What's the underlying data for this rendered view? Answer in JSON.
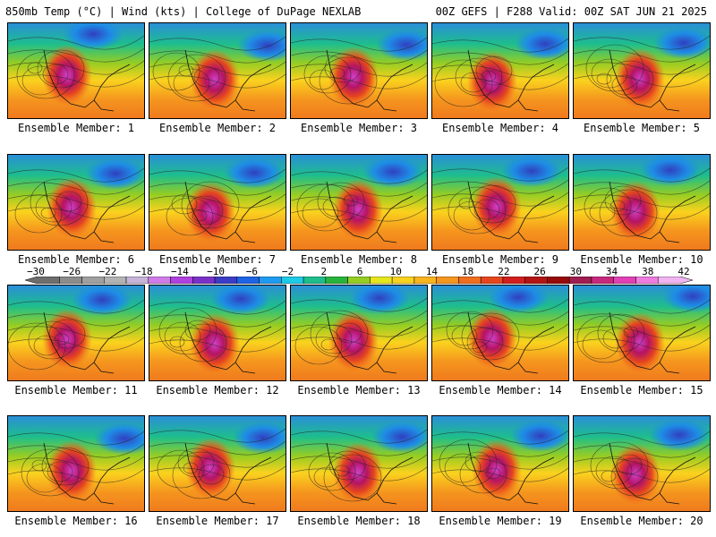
{
  "header": {
    "left": "850mb Temp (°C) | Wind (kts) | College of DuPage NEXLAB",
    "right": "00Z GEFS | F288 Valid: 00Z SAT JUN 21 2025"
  },
  "colorbar": {
    "labels": [
      "−30",
      "−26",
      "−22",
      "−18",
      "−14",
      "−10",
      "−6",
      "−2",
      "2",
      "6",
      "10",
      "14",
      "18",
      "22",
      "26",
      "30",
      "34",
      "38",
      "42"
    ],
    "colors": [
      "#6e6e6e",
      "#8c8c8c",
      "#a0a0a0",
      "#b4b4b4",
      "#c8b4d8",
      "#d07ce8",
      "#b040e0",
      "#7a30c8",
      "#3c3cc8",
      "#1e64e6",
      "#1e9bf0",
      "#1ecbe6",
      "#1ebe8c",
      "#28b43c",
      "#96cd23",
      "#e6e61e",
      "#fad21e",
      "#fab41e",
      "#f5961e",
      "#f06e1e",
      "#e6461e",
      "#d21e1e",
      "#b41414",
      "#960a0a",
      "#a01e50",
      "#c8287e",
      "#e040b4",
      "#f07ce0",
      "#f0b4f0"
    ]
  },
  "members": [
    {
      "label": "Ensemble Member: 1"
    },
    {
      "label": "Ensemble Member: 2"
    },
    {
      "label": "Ensemble Member: 3"
    },
    {
      "label": "Ensemble Member: 4"
    },
    {
      "label": "Ensemble Member: 5"
    },
    {
      "label": "Ensemble Member: 6"
    },
    {
      "label": "Ensemble Member: 7"
    },
    {
      "label": "Ensemble Member: 8"
    },
    {
      "label": "Ensemble Member: 9"
    },
    {
      "label": "Ensemble Member: 10"
    },
    {
      "label": "Ensemble Member: 11"
    },
    {
      "label": "Ensemble Member: 12"
    },
    {
      "label": "Ensemble Member: 13"
    },
    {
      "label": "Ensemble Member: 14"
    },
    {
      "label": "Ensemble Member: 15"
    },
    {
      "label": "Ensemble Member: 16"
    },
    {
      "label": "Ensemble Member: 17"
    },
    {
      "label": "Ensemble Member: 18"
    },
    {
      "label": "Ensemble Member: 19"
    },
    {
      "label": "Ensemble Member: 20"
    }
  ]
}
